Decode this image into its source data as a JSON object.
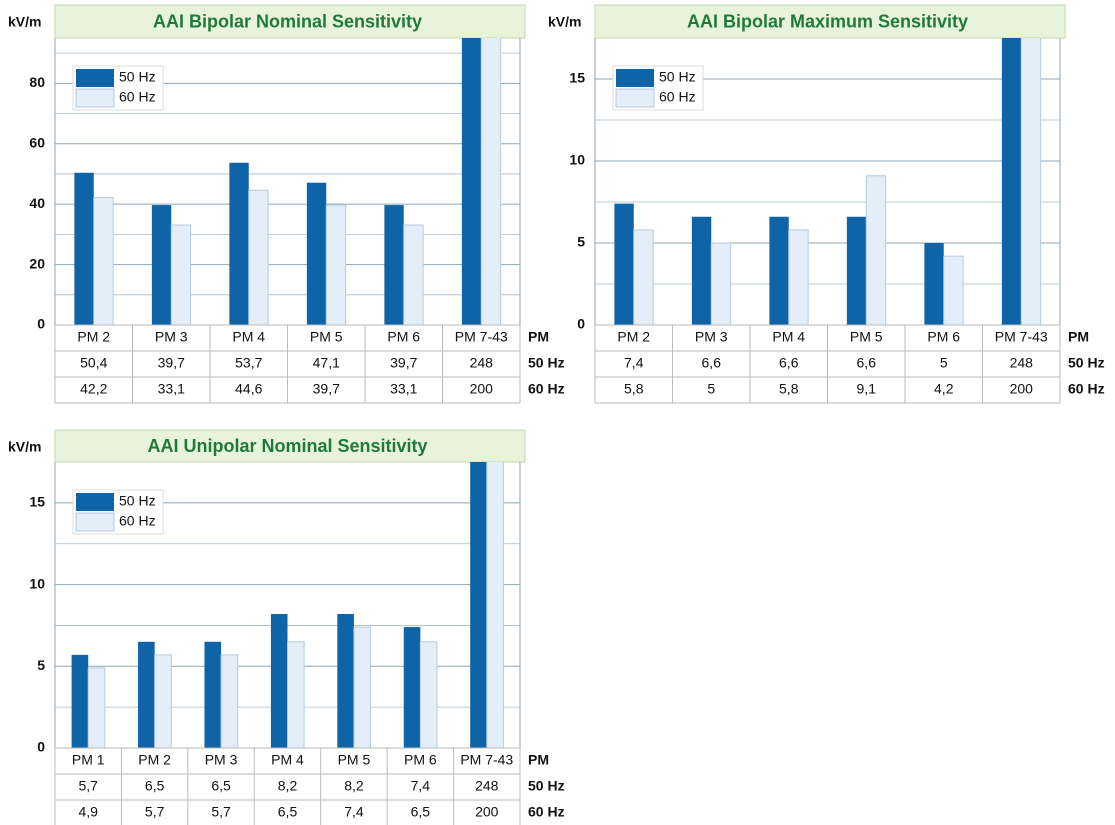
{
  "chart_data": [
    {
      "type": "bar",
      "title": "AAI Bipolar Nominal Sensitivity",
      "y_label": "kV/m",
      "x_label": "PM",
      "categories": [
        "PM 2",
        "PM 3",
        "PM 4",
        "PM 5",
        "PM 6",
        "PM 7-43"
      ],
      "series": [
        {
          "name": "50 Hz",
          "color": "#0f64a8",
          "values": [
            50.4,
            39.7,
            53.7,
            47.1,
            39.7,
            248
          ],
          "value_labels": [
            "50,4",
            "39,7",
            "53,7",
            "47,1",
            "39,7",
            "248"
          ]
        },
        {
          "name": "60 Hz",
          "color": "#e4eef8",
          "values": [
            42.2,
            33.1,
            44.6,
            39.7,
            33.1,
            200
          ],
          "value_labels": [
            "42,2",
            "33,1",
            "44,6",
            "39,7",
            "33,1",
            "200"
          ]
        }
      ],
      "ylim": [
        0,
        95
      ],
      "yticks": [
        0,
        20,
        40,
        60,
        80
      ],
      "minor_yticks": [
        10,
        30,
        50,
        70,
        90
      ],
      "grid": true,
      "legend": "upper left"
    },
    {
      "type": "bar",
      "title": "AAI Bipolar Maximum Sensitivity",
      "y_label": "kV/m",
      "x_label": "PM",
      "categories": [
        "PM 2",
        "PM 3",
        "PM 4",
        "PM 5",
        "PM 6",
        "PM 7-43"
      ],
      "series": [
        {
          "name": "50 Hz",
          "color": "#0f64a8",
          "values": [
            7.4,
            6.6,
            6.6,
            6.6,
            5,
            248
          ],
          "value_labels": [
            "7,4",
            "6,6",
            "6,6",
            "6,6",
            "5",
            "248"
          ]
        },
        {
          "name": "60 Hz",
          "color": "#e4eef8",
          "values": [
            5.8,
            5,
            5.8,
            9.1,
            4.2,
            200
          ],
          "value_labels": [
            "5,8",
            "5",
            "5,8",
            "9,1",
            "4,2",
            "200"
          ]
        }
      ],
      "ylim": [
        0,
        17.5
      ],
      "yticks": [
        0,
        5,
        10,
        15
      ],
      "minor_yticks": [
        2.5,
        7.5,
        12.5
      ],
      "grid": true,
      "legend": "upper left"
    },
    {
      "type": "bar",
      "title": "AAI Unipolar Nominal Sensitivity",
      "y_label": "kV/m",
      "x_label": "PM",
      "categories": [
        "PM 1",
        "PM 2",
        "PM 3",
        "PM 4",
        "PM 5",
        "PM 6",
        "PM 7-43"
      ],
      "series": [
        {
          "name": "50 Hz",
          "color": "#0f64a8",
          "values": [
            5.7,
            6.5,
            6.5,
            8.2,
            8.2,
            7.4,
            248
          ],
          "value_labels": [
            "5,7",
            "6,5",
            "6,5",
            "8,2",
            "8,2",
            "7,4",
            "248"
          ]
        },
        {
          "name": "60 Hz",
          "color": "#e4eef8",
          "values": [
            4.9,
            5.7,
            5.7,
            6.5,
            7.4,
            6.5,
            200
          ],
          "value_labels": [
            "4,9",
            "5,7",
            "5,7",
            "6,5",
            "7,4",
            "6,5",
            "200"
          ]
        }
      ],
      "ylim": [
        0,
        17.5
      ],
      "yticks": [
        0,
        5,
        10,
        15
      ],
      "minor_yticks": [
        2.5,
        7.5,
        12.5
      ],
      "grid": true,
      "legend": "upper left"
    }
  ]
}
